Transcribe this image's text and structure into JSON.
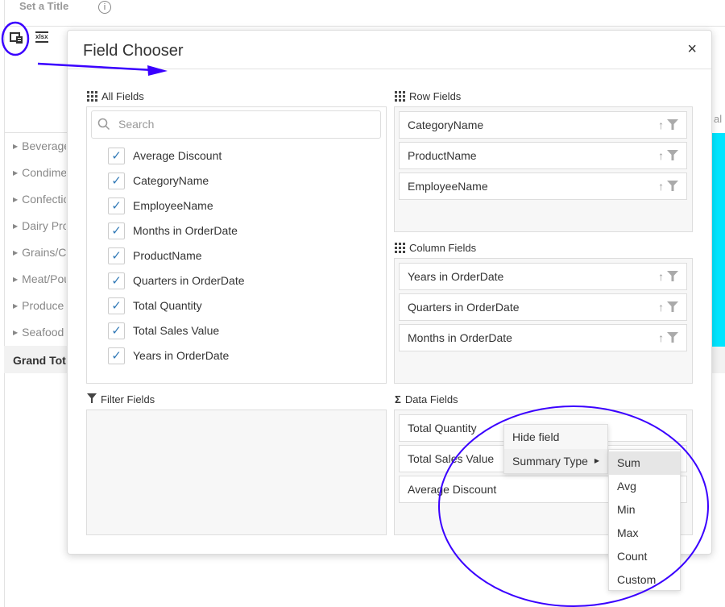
{
  "background": {
    "title": "Set a Title",
    "info_icon": "info-icon",
    "toolbar_icons": [
      "field-chooser-icon",
      "export-xlsx-icon"
    ],
    "xlsx_label": "xlsx",
    "row_labels": [
      "Beverages",
      "Condiments",
      "Confections",
      "Dairy Products",
      "Grains/Cereals",
      "Meat/Poultry",
      "Produce",
      "Seafood"
    ],
    "grand_total": "Grand Total",
    "column_header_partial": "al C",
    "highlight_color": "#00e5ff"
  },
  "dialog": {
    "title": "Field Chooser",
    "close_label": "×",
    "all_fields": {
      "label": "All Fields",
      "search_placeholder": "Search",
      "fields": [
        "Average Discount",
        "CategoryName",
        "EmployeeName",
        "Months in OrderDate",
        "ProductName",
        "Quarters in OrderDate",
        "Total Quantity",
        "Total Sales Value",
        "Years in OrderDate"
      ]
    },
    "filter_fields": {
      "label": "Filter Fields"
    },
    "row_fields": {
      "label": "Row Fields",
      "fields": [
        "CategoryName",
        "ProductName",
        "EmployeeName"
      ]
    },
    "column_fields": {
      "label": "Column Fields",
      "fields": [
        "Years in OrderDate",
        "Quarters in OrderDate",
        "Months in OrderDate"
      ]
    },
    "data_fields": {
      "label": "Data Fields",
      "sigma": "Σ",
      "fields": [
        "Total Quantity",
        "Total Sales Value",
        "Average Discount"
      ]
    },
    "check_mark": "✓",
    "sort_glyph": "↑"
  },
  "context_menu": {
    "items": [
      "Hide field",
      "Summary Type"
    ],
    "submenu": [
      "Sum",
      "Avg",
      "Min",
      "Max",
      "Count",
      "Custom"
    ],
    "selected": "Sum"
  },
  "annotation_color": "#3a00ff"
}
